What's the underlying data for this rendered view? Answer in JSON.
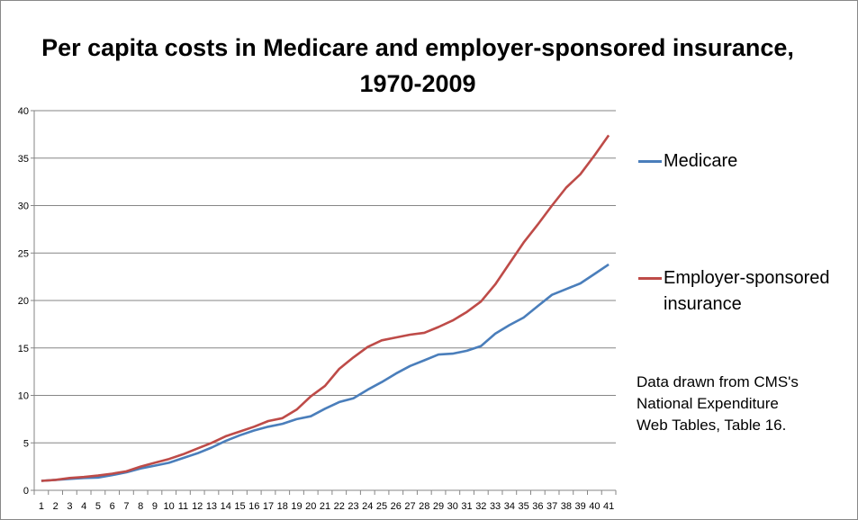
{
  "chart_data": {
    "type": "line",
    "title_line1": "Per capita costs in Medicare and employer-sponsored insurance,",
    "title_line2": "1970-2009",
    "xlabel": "",
    "ylabel": "",
    "x": [
      1,
      2,
      3,
      4,
      5,
      6,
      7,
      8,
      9,
      10,
      11,
      12,
      13,
      14,
      15,
      16,
      17,
      18,
      19,
      20,
      21,
      22,
      23,
      24,
      25,
      26,
      27,
      28,
      29,
      30,
      31,
      32,
      33,
      34,
      35,
      36,
      37,
      38,
      39,
      40,
      41
    ],
    "ylim": [
      0,
      40
    ],
    "yticks": [
      0,
      5,
      10,
      15,
      20,
      25,
      30,
      35,
      40
    ],
    "grid": true,
    "legend_position": "right",
    "series": [
      {
        "name": "Medicare",
        "color": "#4a7ebb",
        "values": [
          1.0,
          1.1,
          1.2,
          1.3,
          1.35,
          1.6,
          1.9,
          2.3,
          2.6,
          2.9,
          3.4,
          3.9,
          4.5,
          5.2,
          5.8,
          6.3,
          6.7,
          7.0,
          7.5,
          7.8,
          8.6,
          9.3,
          9.7,
          10.6,
          11.4,
          12.3,
          13.1,
          13.7,
          14.3,
          14.4,
          14.7,
          15.2,
          16.5,
          17.4,
          18.2,
          19.4,
          20.6,
          21.2,
          21.8,
          22.8,
          23.8
        ]
      },
      {
        "name": "Employer-sponsored insurance",
        "name_line1": "Employer-sponsored",
        "name_line2": "insurance",
        "color": "#be4b48",
        "values": [
          1.0,
          1.1,
          1.3,
          1.4,
          1.55,
          1.75,
          2.0,
          2.5,
          2.9,
          3.3,
          3.8,
          4.4,
          5.0,
          5.7,
          6.2,
          6.7,
          7.3,
          7.6,
          8.5,
          9.9,
          11.0,
          12.8,
          14.0,
          15.1,
          15.8,
          16.1,
          16.4,
          16.6,
          17.2,
          17.9,
          18.8,
          19.9,
          21.7,
          23.9,
          26.1,
          28.0,
          30.0,
          31.9,
          33.3,
          35.3,
          37.4
        ]
      }
    ],
    "annotation": [
      "Data drawn from CMS's",
      "National Expenditure",
      "Web Tables, Table 16."
    ]
  }
}
